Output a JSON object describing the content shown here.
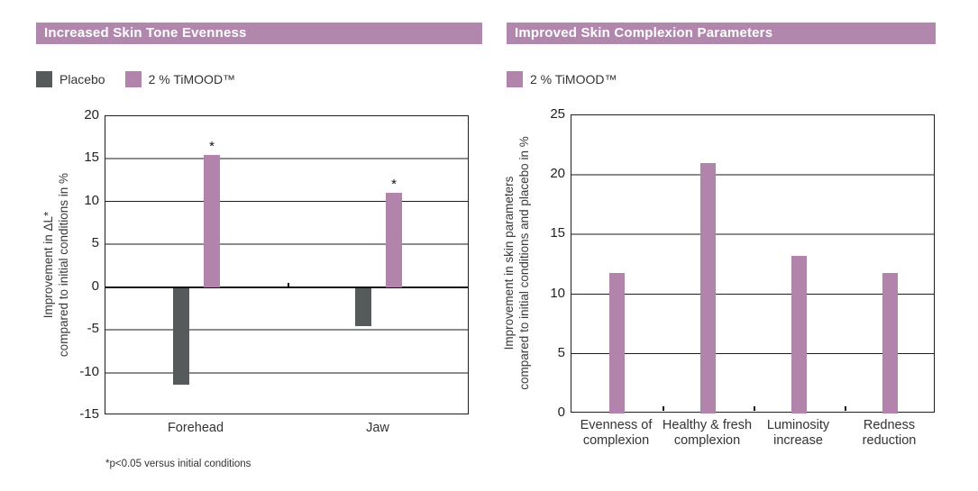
{
  "colors": {
    "header_bg": "#b287ae",
    "timood_bar": "#b283ab",
    "placebo_bar": "#565a5a",
    "grid_gray": "#8c8c8c",
    "grid_dark": "#1c1c1c",
    "text": "#333333"
  },
  "chart_data": [
    {
      "type": "bar",
      "title": "Increased Skin Tone Evenness",
      "categories": [
        "Forehead",
        "Jaw"
      ],
      "series": [
        {
          "name": "Placebo",
          "color": "#565a5a",
          "values": [
            -11.3,
            -4.5
          ]
        },
        {
          "name": "2 % TiMOOD™",
          "color": "#b283ab",
          "values": [
            15.5,
            11.0
          ],
          "annotations": [
            "*",
            "*"
          ]
        }
      ],
      "ylabel": "Improvement in ΔL* compared to initial conditions in %",
      "ylabel_lines": [
        "Improvement in ΔL*",
        "compared to initial conditions in %"
      ],
      "ylim": [
        -15,
        20
      ],
      "yticks": [
        20,
        15,
        10,
        5,
        0,
        -5,
        -10,
        -15
      ],
      "gridlines": [
        {
          "value": 15,
          "style": "gray"
        },
        {
          "value": 10,
          "style": "dark"
        },
        {
          "value": 5,
          "style": "gray"
        },
        {
          "value": -5,
          "style": "gray"
        },
        {
          "value": -10,
          "style": "gray"
        }
      ],
      "zero_axis": true,
      "legend_position": "top-left",
      "footnote": "*p<0.05 versus initial conditions"
    },
    {
      "type": "bar",
      "title": "Improved Skin Complexion Parameters",
      "categories": [
        "Evenness of\ncomplexion",
        "Healthy & fresh\ncomplexion",
        "Luminosity\nincrease",
        "Redness\nreduction"
      ],
      "series": [
        {
          "name": "2 % TiMOOD™",
          "color": "#b283ab",
          "values": [
            11.8,
            21.0,
            13.2,
            11.8
          ]
        }
      ],
      "ylabel": "Improvement in skin parameters compared to initial conditions and placebo in %",
      "ylabel_lines": [
        "Improvement in skin parameters",
        "compared to initial conditions and placebo in %"
      ],
      "ylim": [
        0,
        25
      ],
      "yticks": [
        25,
        20,
        15,
        10,
        5,
        0
      ],
      "gridlines": [
        {
          "value": 20,
          "style": "gray"
        },
        {
          "value": 15,
          "style": "gray"
        },
        {
          "value": 10,
          "style": "dark"
        },
        {
          "value": 5,
          "style": "dark"
        }
      ],
      "zero_axis": false,
      "legend_position": "top-left"
    }
  ]
}
